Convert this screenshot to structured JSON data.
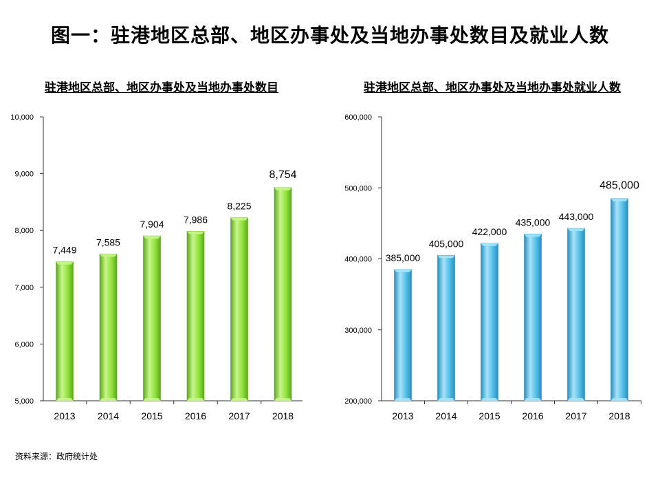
{
  "title": "图一：驻港地区总部、地区办事处及当地办事处数目及就业人数",
  "source": "资料来源：政府统计处",
  "colors": {
    "green_bar": "#8fe03a",
    "green_bar_light": "#c8f58c",
    "green_bar_dark": "#5ca81c",
    "blue_bar": "#52bde8",
    "blue_bar_light": "#a7e3f8",
    "blue_bar_dark": "#2a8fc0"
  },
  "chart_data": [
    {
      "type": "bar",
      "title": "驻港地区总部、地区办事处及当地办事处数目",
      "categories": [
        "2013",
        "2014",
        "2015",
        "2016",
        "2017",
        "2018"
      ],
      "values": [
        7449,
        7585,
        7904,
        7986,
        8225,
        8754
      ],
      "value_labels": [
        "7,449",
        "7,585",
        "7,904",
        "7,986",
        "8,225",
        "8,754"
      ],
      "ylim": [
        5000,
        10000
      ],
      "yticks": [
        5000,
        6000,
        7000,
        8000,
        9000,
        10000
      ],
      "ytick_labels": [
        "5,000",
        "6,000",
        "7,000",
        "8,000",
        "9,000",
        "10,000"
      ],
      "color": "green",
      "xlabel": "",
      "ylabel": ""
    },
    {
      "type": "bar",
      "title": "驻港地区总部、地区办事处及当地办事处就业人数",
      "categories": [
        "2013",
        "2014",
        "2015",
        "2016",
        "2017",
        "2018"
      ],
      "values": [
        385000,
        405000,
        422000,
        435000,
        443000,
        485000
      ],
      "value_labels": [
        "385,000",
        "405,000",
        "422,000",
        "435,000",
        "443,000",
        "485,000"
      ],
      "ylim": [
        200000,
        600000
      ],
      "yticks": [
        200000,
        300000,
        400000,
        500000,
        600000
      ],
      "ytick_labels": [
        "200,000",
        "300,000",
        "400,000",
        "500,000",
        "600,000"
      ],
      "color": "blue",
      "xlabel": "",
      "ylabel": ""
    }
  ]
}
